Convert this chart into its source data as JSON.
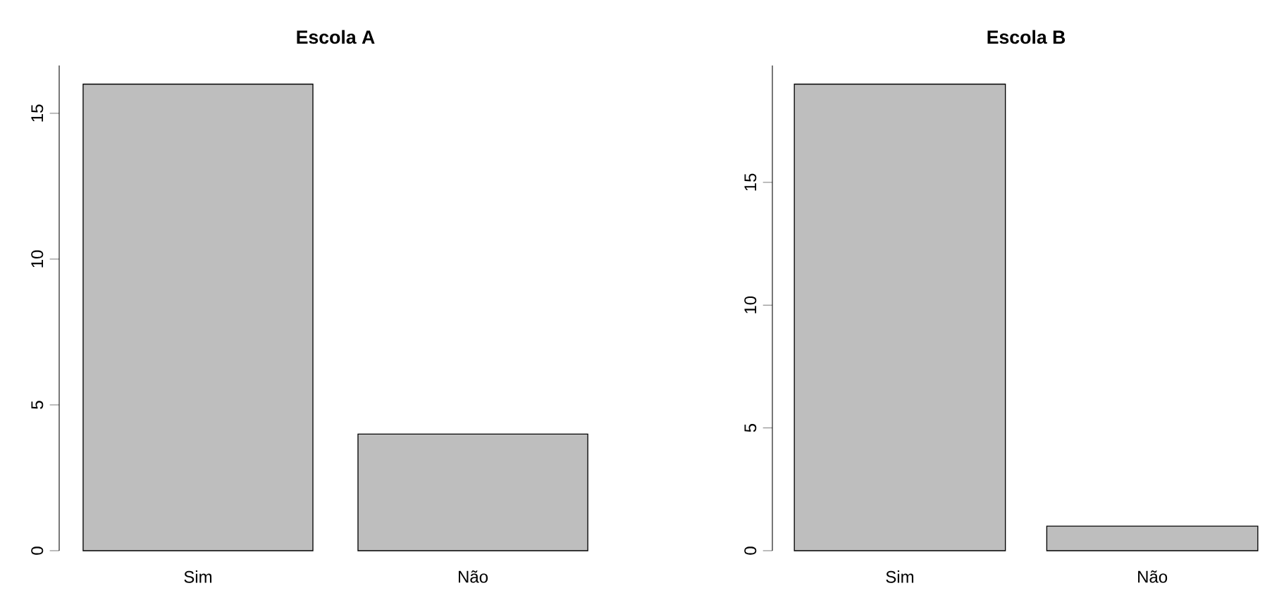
{
  "chart_data": [
    {
      "type": "bar",
      "title": "**Escola A**",
      "categories": [
        "Sim",
        "Não"
      ],
      "values": [
        16,
        4
      ],
      "color": "#bebebe",
      "ylim": [
        0,
        16.64
      ],
      "yticks": [
        0,
        5,
        10,
        15
      ],
      "grid": false
    },
    {
      "type": "bar",
      "title": "**Escola B**",
      "categories": [
        "Sim",
        "Não"
      ],
      "values": [
        19,
        1
      ],
      "color": "#bebebe",
      "ylim": [
        0,
        19.76
      ],
      "yticks": [
        0,
        5,
        10,
        15
      ],
      "grid": false
    }
  ]
}
